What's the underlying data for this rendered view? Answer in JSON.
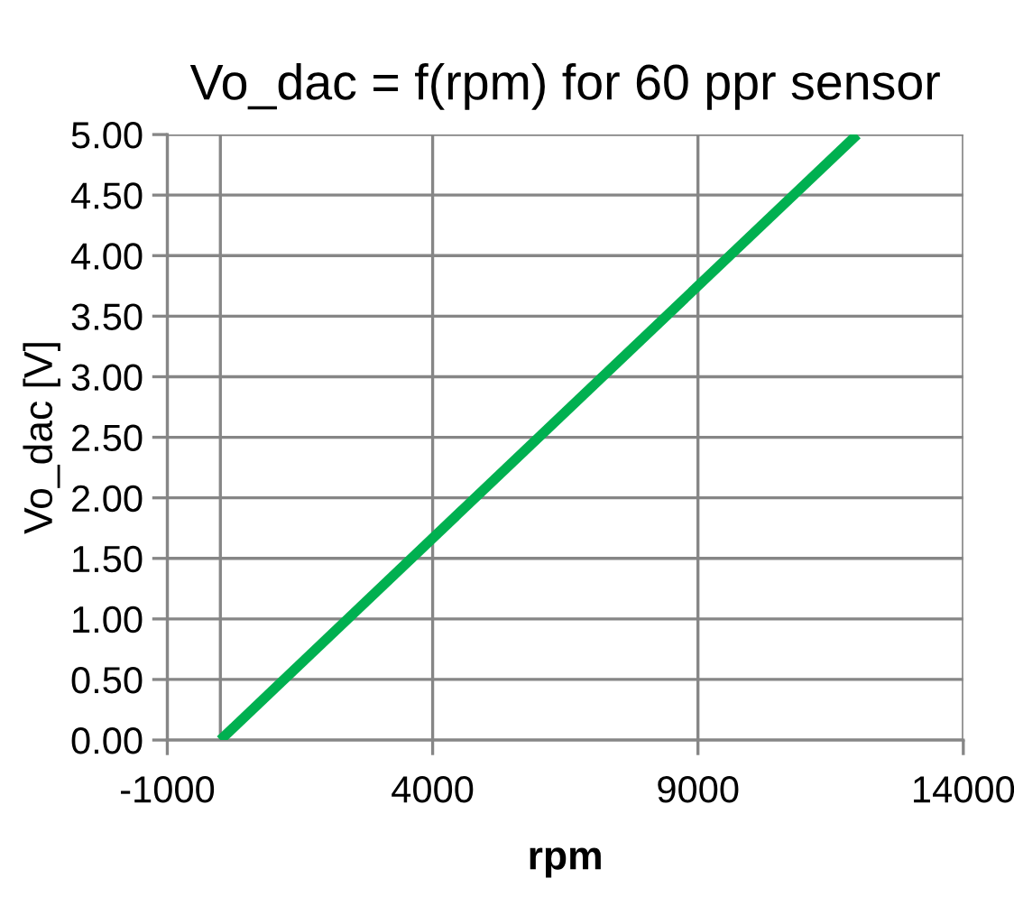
{
  "chart_data": {
    "type": "line",
    "title": "Vo_dac = f(rpm) for 60 ppr sensor",
    "xlabel": "rpm",
    "ylabel": "Vo_dac [V]",
    "x": [
      0,
      12000
    ],
    "series": [
      {
        "color": "#00b050",
        "values": [
          0,
          5.0
        ]
      }
    ],
    "xlim": [
      -1000,
      14000
    ],
    "xticks": [
      -1000,
      4000,
      9000,
      14000
    ],
    "ylim": [
      0,
      5
    ],
    "yticks": [
      {
        "value": 0,
        "label": "0.00"
      },
      {
        "value": 0.5,
        "label": "0.50"
      },
      {
        "value": 1,
        "label": "1.00"
      },
      {
        "value": 1.5,
        "label": "1.50"
      },
      {
        "value": 2,
        "label": "2.00"
      },
      {
        "value": 2.5,
        "label": "2.50"
      },
      {
        "value": 3,
        "label": "3.00"
      },
      {
        "value": 3.5,
        "label": "3.50"
      },
      {
        "value": 4,
        "label": "4.00"
      },
      {
        "value": 4.5,
        "label": "4.50"
      },
      {
        "value": 5,
        "label": "5.00"
      }
    ],
    "ref_lines": [
      {
        "axis": "x",
        "value": 0,
        "color": "#868686"
      }
    ],
    "grid": true,
    "legend": false,
    "marker": "none",
    "line_style": "solid"
  }
}
